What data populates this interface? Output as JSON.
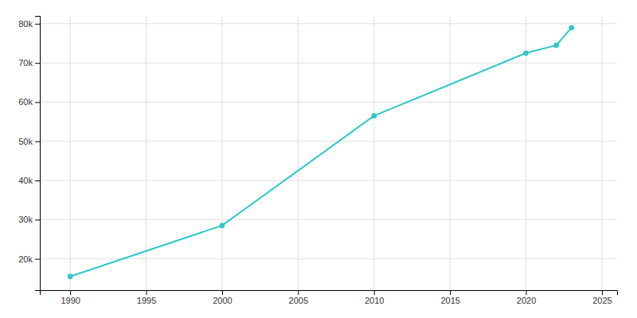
{
  "chart_data": {
    "type": "line",
    "x": [
      1990,
      2000,
      2010,
      2020,
      2022,
      2023
    ],
    "values": [
      15500,
      28500,
      56500,
      72500,
      74500,
      79000
    ],
    "color": "#2ec8c8",
    "marker": "circle",
    "xlim": [
      1988,
      2026
    ],
    "ylim": [
      12000,
      82000
    ],
    "xticks": [
      1990,
      1995,
      2000,
      2005,
      2010,
      2015,
      2020,
      2025
    ],
    "yticks": [
      {
        "value": 20000,
        "label": "20k"
      },
      {
        "value": 30000,
        "label": "30k"
      },
      {
        "value": 40000,
        "label": "40k"
      },
      {
        "value": 50000,
        "label": "50k"
      },
      {
        "value": 60000,
        "label": "60k"
      },
      {
        "value": 70000,
        "label": "70k"
      },
      {
        "value": 80000,
        "label": "80k"
      }
    ],
    "grid": true
  }
}
